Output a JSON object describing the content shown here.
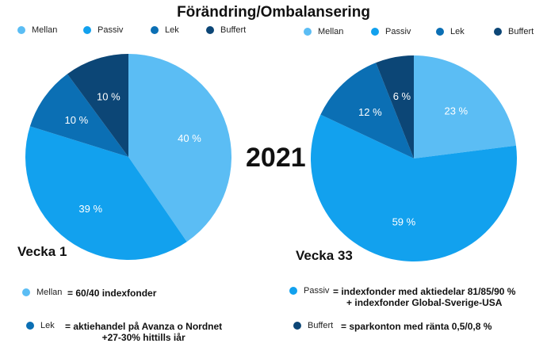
{
  "colors": {
    "Mellan": "#5bbdf4",
    "Passiv": "#12a1ee",
    "Lek": "#0b6fb4",
    "Buffert": "#0c4676"
  },
  "title": "Förändring/Ombalansering",
  "year": "2021",
  "chart_data": [
    {
      "type": "pie",
      "label": "Vecka 1",
      "legend": [
        "Mellan",
        "Passiv",
        "Lek",
        "Buffert"
      ],
      "values": [
        40,
        39,
        10,
        10
      ],
      "data_labels": [
        "40 %",
        "39 %",
        "10 %",
        "10 %"
      ],
      "legend_placement": "top"
    },
    {
      "type": "pie",
      "label": "Vecka 33",
      "legend": [
        "Mellan",
        "Passiv",
        "Lek",
        "Buffert"
      ],
      "values": [
        23,
        59,
        12,
        6
      ],
      "data_labels": [
        "23 %",
        "59 %",
        "12 %",
        "6 %"
      ],
      "legend_placement": "top"
    }
  ],
  "notes": [
    {
      "name": "Mellan",
      "desc": [
        "= 60/40 indexfonder"
      ]
    },
    {
      "name": "Passiv",
      "desc": [
        "= indexfonder med aktiedelar 81/85/90 %",
        "+ indexfonder Global-Sverige-USA"
      ]
    },
    {
      "name": "Lek",
      "desc": [
        "= aktiehandel på Avanza o Nordnet",
        "+27-30% hittills iår"
      ]
    },
    {
      "name": "Buffert",
      "desc": [
        "= sparkonton med ränta 0,5/0,8 %"
      ]
    }
  ]
}
